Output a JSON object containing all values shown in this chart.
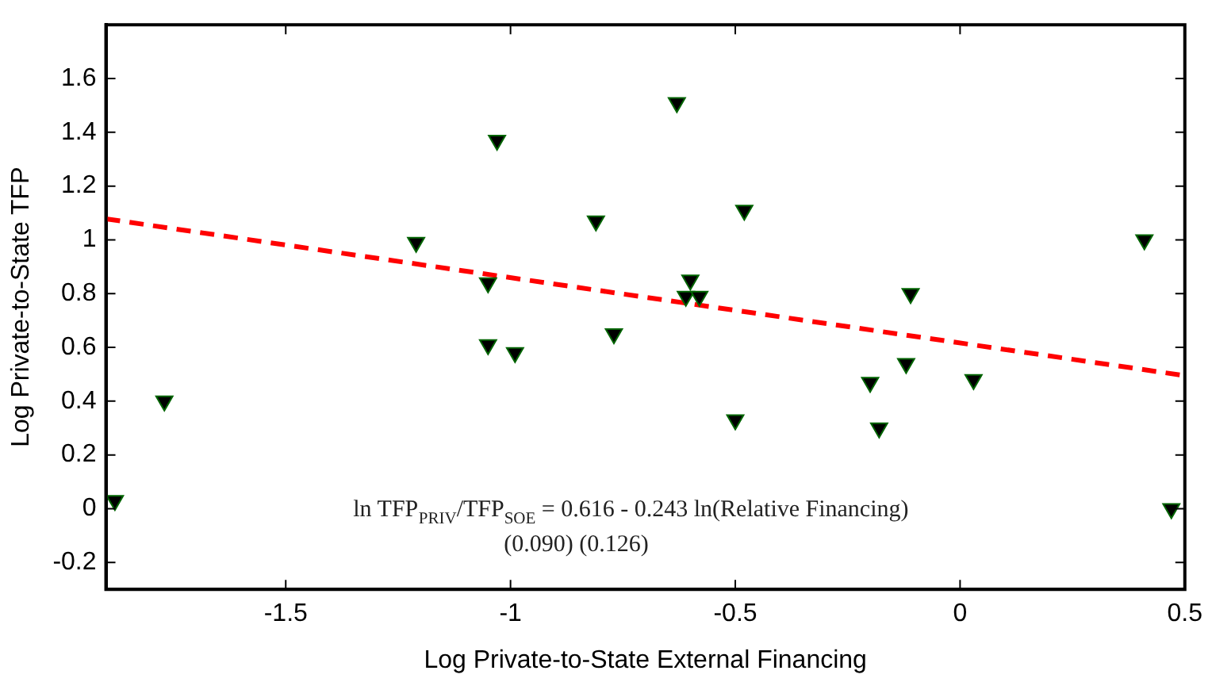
{
  "chart_data": {
    "type": "scatter",
    "xlabel": "Log Private-to-State External Financing",
    "ylabel": "Log Private-to-State TFP",
    "xlim": [
      -1.9,
      0.5
    ],
    "xticks": [
      -1.5,
      -1,
      -0.5,
      0,
      0.5
    ],
    "ylim": [
      -0.3,
      1.8
    ],
    "yticks": [
      -0.2,
      0,
      0.2,
      0.4,
      0.6,
      0.8,
      1,
      1.2,
      1.4,
      1.6
    ],
    "grid": false,
    "legend": false,
    "series": [
      {
        "color": "#000000",
        "marker": "triangle",
        "x": [
          -1.88,
          -1.77,
          -1.21,
          -1.03,
          -1.05,
          -1.05,
          -0.99,
          -0.81,
          -0.77,
          -0.63,
          -0.48,
          -0.6,
          -0.61,
          -0.58,
          -0.5,
          -0.2,
          -0.18,
          -0.12,
          -0.11,
          0.03,
          0.41,
          0.47
        ],
        "values": [
          0.03,
          0.4,
          0.99,
          1.37,
          0.84,
          0.61,
          0.58,
          1.07,
          0.65,
          1.51,
          1.11,
          0.85,
          0.79,
          0.79,
          0.33,
          0.47,
          0.3,
          0.54,
          0.8,
          0.48,
          1.0,
          0.0
        ]
      },
      {
        "type": "line",
        "color": "#ff0000",
        "marker": "none",
        "line_style": "dashed",
        "x": [
          -1.9,
          0.5
        ],
        "values": [
          1.078,
          0.495
        ]
      }
    ],
    "annotations": [
      "ln TFP$_{PRIV}$/TFP$_{SOE}$ = 0.616 - 0.243 ln(Relative Financing)",
      "(0.090) (0.126)"
    ]
  }
}
